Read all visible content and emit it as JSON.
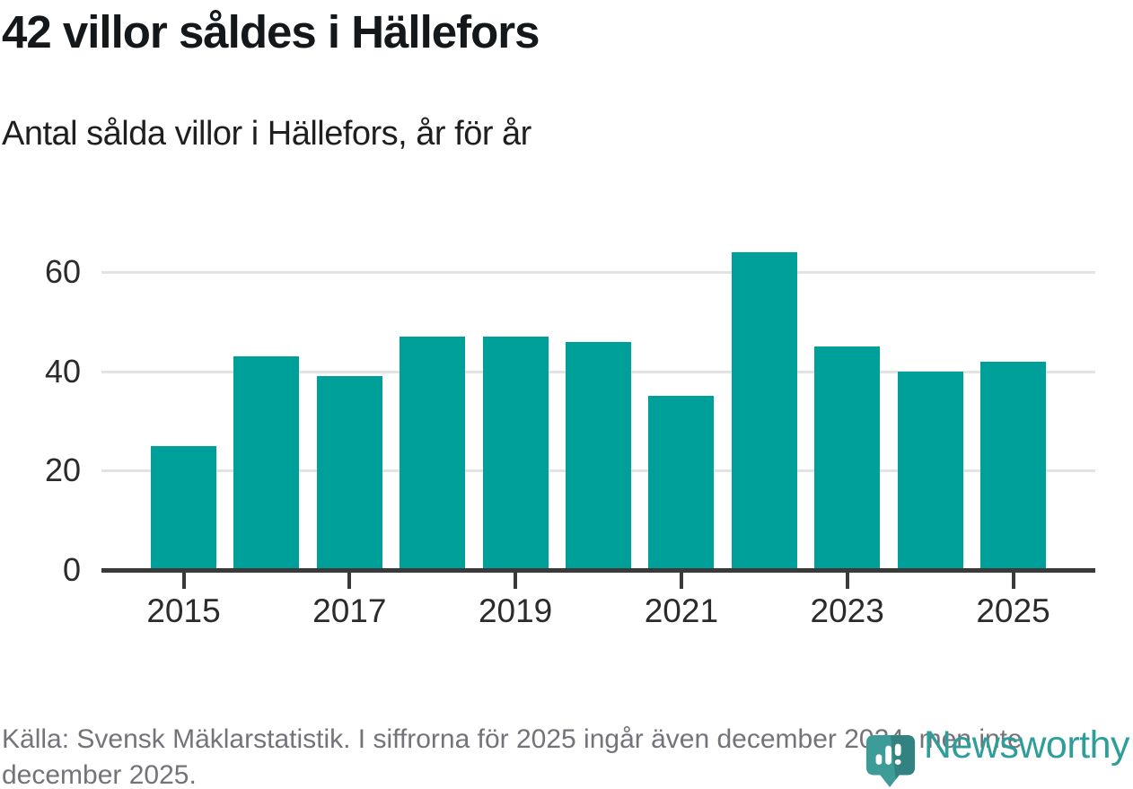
{
  "header": {
    "title": "42 villor såldes i Hällefors",
    "subtitle": "Antal sålda villor i Hällefors, år för år"
  },
  "chart_data": {
    "type": "bar",
    "title": "Antal sålda villor i Hällefors, år för år",
    "categories": [
      "2015",
      "2016",
      "2017",
      "2018",
      "2019",
      "2020",
      "2021",
      "2022",
      "2023",
      "2024",
      "2025"
    ],
    "values": [
      25,
      43,
      39,
      47,
      47,
      46,
      35,
      64,
      45,
      40,
      42
    ],
    "xlabel": "",
    "ylabel": "",
    "ylim": [
      0,
      66
    ],
    "yticks": [
      0,
      20,
      40,
      60
    ],
    "xtick_labels": [
      "2015",
      "2017",
      "2019",
      "2021",
      "2023",
      "2025"
    ],
    "bar_color": "#00a09a",
    "grid": "horizontal-only",
    "legend": "none"
  },
  "footer": {
    "source": "Källa: Svensk Mäklarstatistik. I siffrorna för 2025 ingår även december 2024, men inte december 2025."
  },
  "logo": {
    "text": "Newsworthy",
    "color": "#2f9e9b"
  }
}
